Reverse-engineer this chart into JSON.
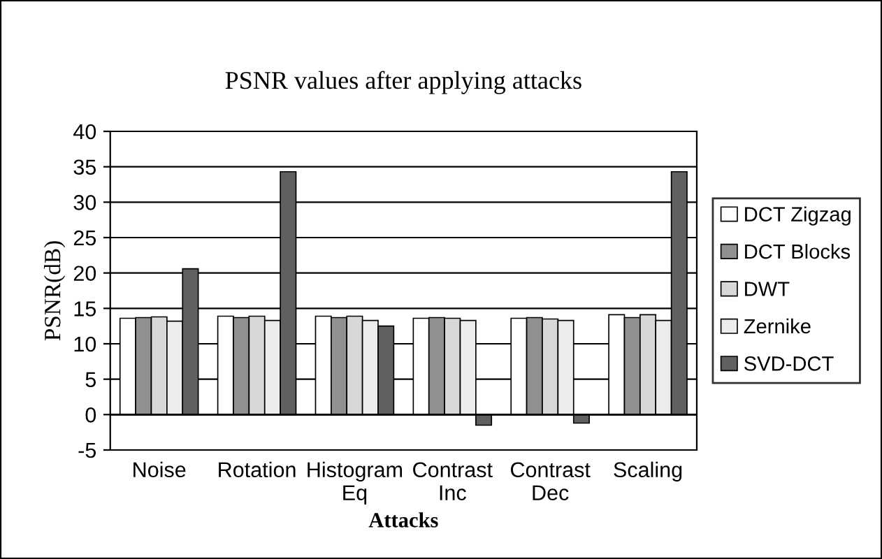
{
  "chart_data": {
    "type": "bar",
    "title": "PSNR values after applying attacks",
    "xlabel": "Attacks",
    "ylabel": "PSNR(dB)",
    "categories": [
      "Noise",
      "Rotation",
      "Histogram\nEq",
      "Contrast\nInc",
      "Contrast\nDec",
      "Scaling"
    ],
    "series": [
      {
        "name": "DCT Zigzag",
        "color": "#ffffff",
        "values": [
          13.6,
          13.9,
          13.9,
          13.6,
          13.6,
          14.1
        ]
      },
      {
        "name": "DCT Blocks",
        "color": "#909090",
        "values": [
          13.7,
          13.7,
          13.7,
          13.7,
          13.7,
          13.7
        ]
      },
      {
        "name": "DWT",
        "color": "#d8d8d8",
        "values": [
          13.8,
          13.9,
          13.9,
          13.6,
          13.5,
          14.1
        ]
      },
      {
        "name": "Zernike",
        "color": "#ececec",
        "values": [
          13.2,
          13.3,
          13.3,
          13.3,
          13.3,
          13.3
        ]
      },
      {
        "name": "SVD-DCT",
        "color": "#606060",
        "values": [
          20.6,
          34.3,
          12.5,
          -1.5,
          -1.2,
          34.3
        ]
      }
    ],
    "ylim": [
      -5,
      40
    ],
    "yticks": [
      -5,
      0,
      5,
      10,
      15,
      20,
      25,
      30,
      35,
      40
    ],
    "grid": "y",
    "legend": "right"
  }
}
